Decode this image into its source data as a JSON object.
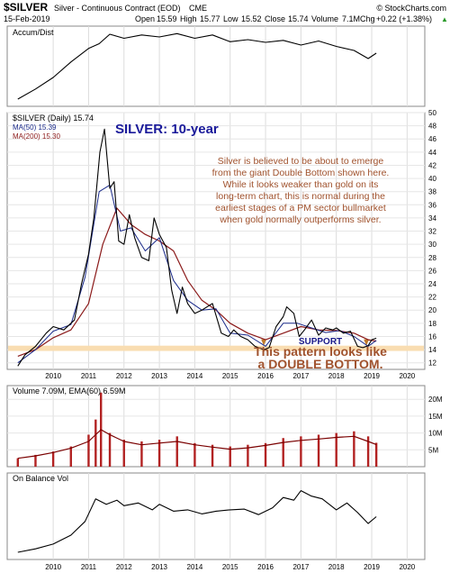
{
  "header": {
    "symbol": "$SILVER",
    "description": "Silver - Continuous Contract (EOD)",
    "exchange": "CME",
    "date": "15-Feb-2019",
    "source": "© StockCharts.com",
    "open_label": "Open",
    "open": "15.59",
    "high_label": "High",
    "high": "15.77",
    "low_label": "Low",
    "low": "15.52",
    "close_label": "Close",
    "close": "15.74",
    "volume_label": "Volume",
    "volume": "7.1M",
    "chg_label": "Chg",
    "chg": "+0.22 (+1.38%)",
    "up_arrow": "▲"
  },
  "colors": {
    "price": "#000000",
    "ma50": "#1a2a8a",
    "ma200": "#8b1a1a",
    "volume": "#b22222",
    "support_band": "#f9ddb1",
    "support_text": "#1a1a8a",
    "annotation_text": "#a0522d",
    "title_text": "#1a1a9a"
  },
  "chart_data": [
    {
      "type": "line",
      "panel": "Accum/Dist",
      "title": "Accum/Dist",
      "x": [
        2009.0,
        2009.5,
        2010.0,
        2010.5,
        2011.0,
        2011.3,
        2011.6,
        2012.0,
        2012.5,
        2013.0,
        2013.5,
        2014.0,
        2014.5,
        2015.0,
        2015.5,
        2016.0,
        2016.5,
        2017.0,
        2017.5,
        2018.0,
        2018.5,
        2018.9,
        2019.13
      ],
      "y": [
        0.0,
        0.15,
        0.32,
        0.55,
        0.75,
        0.82,
        0.96,
        0.9,
        0.95,
        0.92,
        0.97,
        0.9,
        0.95,
        0.85,
        0.88,
        0.84,
        0.87,
        0.8,
        0.86,
        0.78,
        0.72,
        0.6,
        0.68
      ],
      "y_ticks": []
    },
    {
      "type": "line",
      "panel": "price",
      "title": "SILVER: 10-year",
      "series": [
        {
          "name": "$SILVER (Daily) 15.74",
          "x": [
            2009.0,
            2009.2,
            2009.5,
            2009.8,
            2010.0,
            2010.3,
            2010.6,
            2010.8,
            2011.0,
            2011.15,
            2011.32,
            2011.45,
            2011.6,
            2011.72,
            2011.85,
            2012.0,
            2012.15,
            2012.3,
            2012.5,
            2012.7,
            2012.85,
            2013.0,
            2013.2,
            2013.35,
            2013.5,
            2013.65,
            2013.8,
            2014.0,
            2014.2,
            2014.5,
            2014.75,
            2014.95,
            2015.1,
            2015.3,
            2015.5,
            2015.7,
            2015.95,
            2016.1,
            2016.3,
            2016.5,
            2016.6,
            2016.8,
            2016.95,
            2017.1,
            2017.3,
            2017.5,
            2017.7,
            2017.9,
            2018.0,
            2018.2,
            2018.4,
            2018.6,
            2018.75,
            2018.9,
            2019.0,
            2019.13
          ],
          "y": [
            11.5,
            13.2,
            14.5,
            16.5,
            17.5,
            17.0,
            18.5,
            24.0,
            28.5,
            34.0,
            44.0,
            47.5,
            38.5,
            39.5,
            30.5,
            30.0,
            34.5,
            31.0,
            28.0,
            27.5,
            34.0,
            31.5,
            29.5,
            23.0,
            19.5,
            23.5,
            21.0,
            19.5,
            20.0,
            21.0,
            16.5,
            16.0,
            17.0,
            16.0,
            15.5,
            14.5,
            14.0,
            14.3,
            17.5,
            19.0,
            20.5,
            19.5,
            16.0,
            17.0,
            18.5,
            16.2,
            17.3,
            17.0,
            17.3,
            16.5,
            16.8,
            14.5,
            14.3,
            14.6,
            15.5,
            15.74
          ]
        },
        {
          "name": "MA(50) 15.39",
          "x": [
            2009.0,
            2009.5,
            2010.0,
            2010.5,
            2010.9,
            2011.3,
            2011.6,
            2011.9,
            2012.2,
            2012.6,
            2013.0,
            2013.4,
            2013.8,
            2014.2,
            2014.6,
            2015.0,
            2015.5,
            2016.0,
            2016.5,
            2016.9,
            2017.3,
            2017.7,
            2018.1,
            2018.5,
            2018.9,
            2019.13
          ],
          "y": [
            12.0,
            14.0,
            16.8,
            17.8,
            25.0,
            38.0,
            39.0,
            32.0,
            32.5,
            29.0,
            31.0,
            24.5,
            21.5,
            20.0,
            20.2,
            16.5,
            16.2,
            14.5,
            18.0,
            18.0,
            17.3,
            16.6,
            16.9,
            16.0,
            14.5,
            15.39
          ]
        },
        {
          "name": "MA(200) 15.30",
          "x": [
            2009.0,
            2009.5,
            2010.0,
            2010.5,
            2011.0,
            2011.4,
            2011.8,
            2012.2,
            2012.6,
            2013.0,
            2013.4,
            2013.8,
            2014.2,
            2014.6,
            2015.0,
            2015.5,
            2016.0,
            2016.5,
            2017.0,
            2017.5,
            2018.0,
            2018.5,
            2018.9,
            2019.13
          ],
          "y": [
            13.0,
            14.0,
            15.8,
            17.0,
            21.0,
            30.0,
            35.5,
            33.0,
            31.5,
            30.5,
            29.0,
            24.5,
            21.5,
            20.0,
            18.0,
            16.5,
            15.5,
            16.5,
            17.5,
            17.0,
            16.9,
            16.5,
            15.5,
            15.3
          ]
        }
      ],
      "xlim": [
        2008.7,
        2020.5
      ],
      "ylim": [
        11,
        50
      ],
      "y_ticks": [
        12,
        14,
        16,
        18,
        20,
        22,
        24,
        26,
        28,
        30,
        32,
        34,
        36,
        38,
        40,
        42,
        44,
        46,
        48,
        50
      ],
      "x_ticks": [
        "2010",
        "2011",
        "2012",
        "2013",
        "2014",
        "2015",
        "2016",
        "2017",
        "2018",
        "2019",
        "2020"
      ],
      "support": {
        "label": "SUPPORT",
        "low": 13.8,
        "high": 14.6
      },
      "annotation_top": [
        "Silver is believed to be about to emerge",
        "from the giant Double Bottom shown here.",
        "While it looks weaker than gold on its",
        "long-term chart, this is normal during the",
        "earliest stages of a PM sector bullmarket",
        "when gold normally outperforms silver."
      ],
      "annotation_bottom": [
        "This pattern looks like",
        "a DOUBLE BOTTOM."
      ]
    },
    {
      "type": "bar",
      "panel": "Volume",
      "title": "Volume 7.09M, EMA(60) 6.59M",
      "x": [
        2009.0,
        2009.5,
        2010.0,
        2010.5,
        2011.0,
        2011.2,
        2011.35,
        2011.6,
        2012.0,
        2012.5,
        2013.0,
        2013.5,
        2014.0,
        2014.5,
        2015.0,
        2015.5,
        2016.0,
        2016.5,
        2017.0,
        2017.5,
        2018.0,
        2018.5,
        2018.9,
        2019.13
      ],
      "values_m": [
        2.5,
        3.5,
        4.5,
        6.0,
        9.5,
        14.0,
        22.0,
        10.0,
        8.0,
        7.5,
        8.0,
        9.0,
        7.0,
        6.5,
        6.0,
        6.5,
        7.0,
        8.5,
        9.0,
        9.5,
        10.0,
        10.5,
        9.0,
        7.09
      ],
      "ema_m": [
        2.5,
        3.2,
        4.2,
        5.5,
        7.5,
        9.5,
        11.0,
        9.5,
        7.5,
        6.5,
        7.0,
        7.5,
        6.5,
        5.8,
        5.2,
        5.6,
        6.3,
        7.2,
        7.8,
        8.2,
        8.7,
        9.0,
        7.5,
        6.59
      ],
      "y_ticks": [
        "5M",
        "10M",
        "15M",
        "20M"
      ],
      "ylim": [
        0,
        23
      ]
    },
    {
      "type": "line",
      "panel": "On Balance Vol",
      "title": "On Balance Vol",
      "x": [
        2009.0,
        2009.5,
        2010.0,
        2010.5,
        2010.9,
        2011.2,
        2011.5,
        2011.8,
        2012.0,
        2012.4,
        2012.8,
        2013.0,
        2013.4,
        2013.8,
        2014.2,
        2014.6,
        2015.0,
        2015.4,
        2015.8,
        2016.2,
        2016.5,
        2016.8,
        2017.0,
        2017.3,
        2017.6,
        2018.0,
        2018.3,
        2018.6,
        2018.9,
        2019.13
      ],
      "y": [
        0.0,
        0.05,
        0.12,
        0.25,
        0.45,
        0.78,
        0.7,
        0.76,
        0.68,
        0.72,
        0.62,
        0.7,
        0.6,
        0.62,
        0.56,
        0.6,
        0.62,
        0.63,
        0.55,
        0.65,
        0.8,
        0.76,
        0.9,
        0.82,
        0.78,
        0.62,
        0.72,
        0.58,
        0.42,
        0.52
      ],
      "x_ticks": [
        "2010",
        "2011",
        "2012",
        "2013",
        "2014",
        "2015",
        "2016",
        "2017",
        "2018",
        "2019",
        "2020"
      ]
    }
  ]
}
